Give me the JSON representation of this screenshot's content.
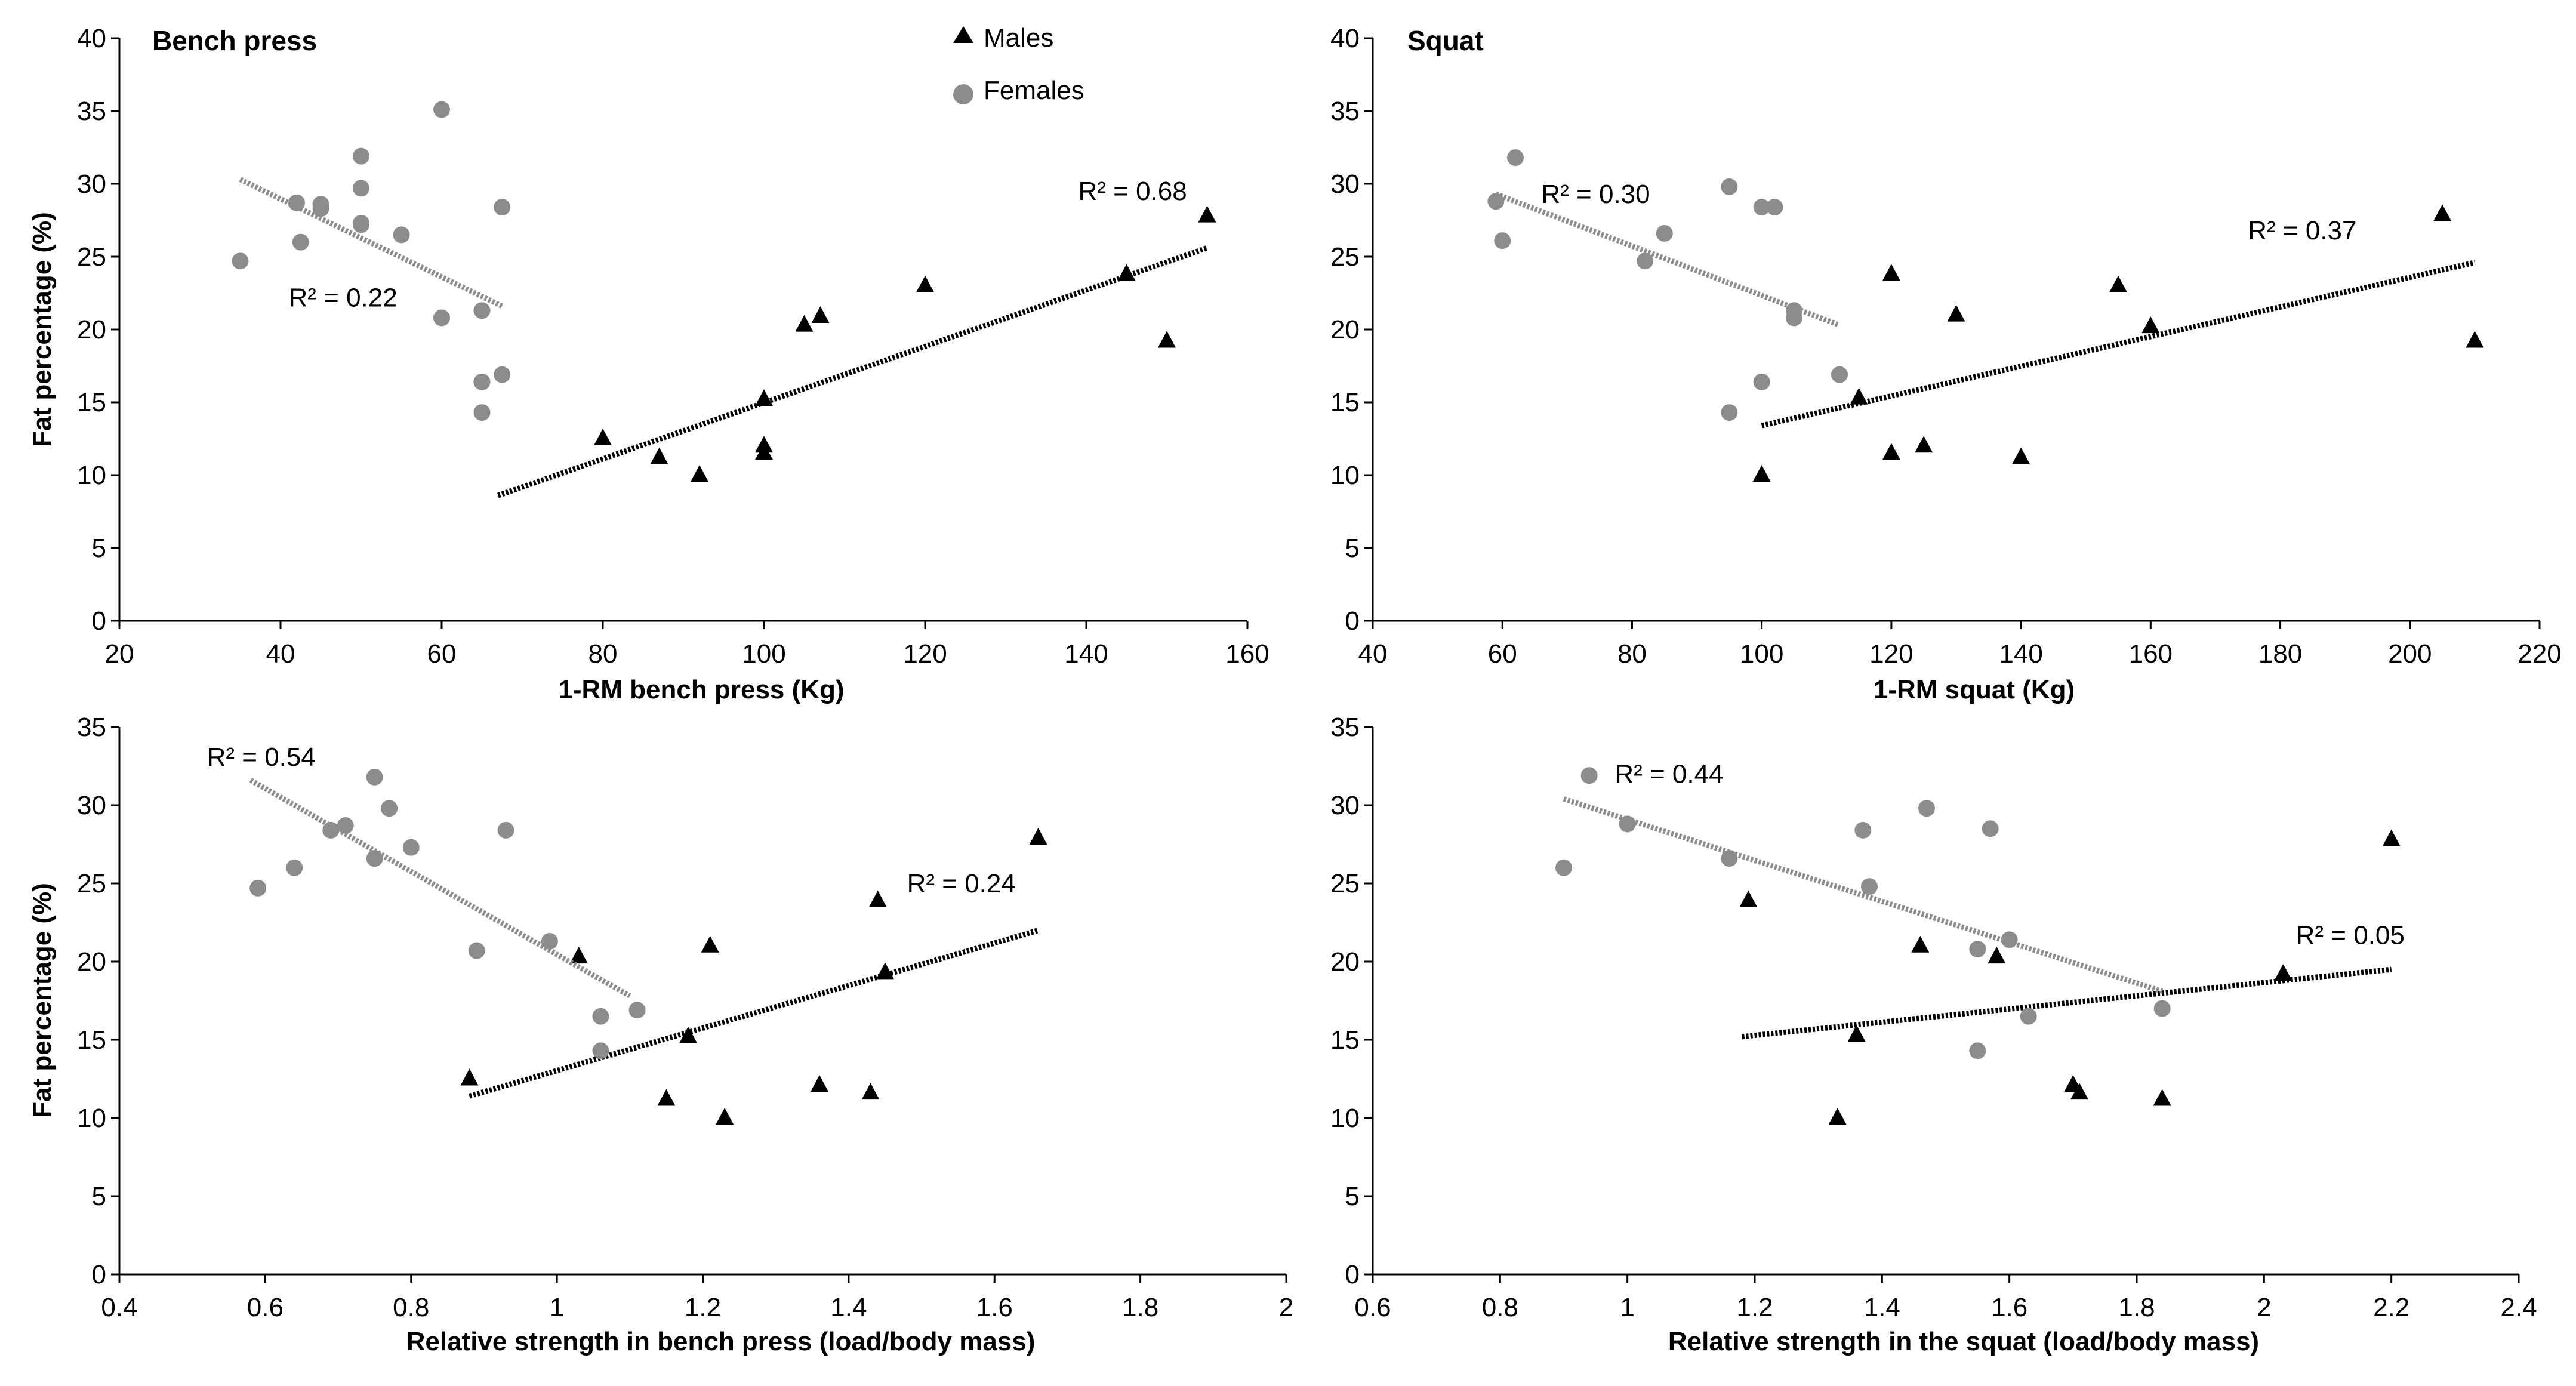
{
  "colors": {
    "males": "#000000",
    "females": "#8c8c8c",
    "axis": "#000000",
    "background": "#ffffff"
  },
  "legend": {
    "males_label": "Males",
    "females_label": "Females",
    "males_icon": "triangle-marker",
    "females_icon": "circle-marker"
  },
  "chart_data": [
    {
      "type": "scatter",
      "title": "Bench press",
      "xlabel": "1-RM bench press (Kg)",
      "ylabel": "Fat percentage (%)",
      "xlim": [
        20,
        160
      ],
      "ylim": [
        0,
        40
      ],
      "xticks": [
        20,
        40,
        60,
        80,
        100,
        120,
        140,
        160
      ],
      "yticks": [
        0,
        5,
        10,
        15,
        20,
        25,
        30,
        35,
        40
      ],
      "xtick_labels": [
        "20",
        "40",
        "60",
        "80",
        "100",
        "120",
        "140",
        "160"
      ],
      "ytick_labels": [
        "0",
        "5",
        "10",
        "15",
        "20",
        "25",
        "30",
        "35",
        "40"
      ],
      "legend_position": "top-center",
      "series": [
        {
          "name": "Males",
          "x": [
            80,
            87,
            92,
            100,
            100,
            100,
            105,
            107,
            120,
            145,
            150,
            155
          ],
          "y": [
            12.5,
            11.2,
            10,
            11.5,
            12,
            15.2,
            20.3,
            20.9,
            23,
            23.8,
            19.2,
            27.8
          ],
          "trend": {
            "x": [
              67,
              155
            ],
            "y": [
              8.6,
              25.6
            ]
          },
          "r2_label": "R² = 0.68",
          "r2_at": [
            139,
            29.5
          ]
        },
        {
          "name": "Females",
          "x": [
            35,
            42,
            42.5,
            45,
            45,
            50,
            50,
            50,
            50,
            55,
            60,
            60,
            65,
            65,
            65,
            67.5,
            67.5
          ],
          "y": [
            24.7,
            28.7,
            26,
            28.6,
            28.3,
            31.9,
            29.7,
            27.3,
            27.2,
            26.5,
            35.1,
            20.8,
            21.3,
            16.4,
            14.3,
            16.9,
            28.4
          ],
          "trend": {
            "x": [
              35,
              67.5
            ],
            "y": [
              30.3,
              21.6
            ]
          },
          "r2_label": "R² = 0.22",
          "r2_at": [
            41,
            22.2
          ]
        }
      ]
    },
    {
      "type": "scatter",
      "title": "Squat",
      "xlabel": "1-RM squat  (Kg)",
      "ylabel": "",
      "xlim": [
        40,
        220
      ],
      "ylim": [
        0,
        40
      ],
      "xticks": [
        40,
        60,
        80,
        100,
        120,
        140,
        160,
        180,
        200,
        220
      ],
      "yticks": [
        0,
        5,
        10,
        15,
        20,
        25,
        30,
        35,
        40
      ],
      "xtick_labels": [
        "40",
        "60",
        "80",
        "100",
        "120",
        "140",
        "160",
        "180",
        "200",
        "220"
      ],
      "ytick_labels": [
        "0",
        "5",
        "10",
        "15",
        "20",
        "25",
        "30",
        "35",
        "40"
      ],
      "legend_position": "none",
      "series": [
        {
          "name": "Males",
          "x": [
            100,
            115,
            120,
            120,
            125,
            130,
            140,
            155,
            160,
            205,
            210
          ],
          "y": [
            10,
            15.3,
            11.5,
            23.8,
            12,
            21,
            11.2,
            23,
            20.2,
            27.9,
            19.2
          ],
          "trend": {
            "x": [
              100,
              210
            ],
            "y": [
              13.4,
              24.6
            ]
          },
          "r2_label": "R² = 0.37",
          "r2_at": [
            175,
            26.8
          ]
        },
        {
          "name": "Females",
          "x": [
            59,
            60,
            62,
            82,
            85,
            95,
            95,
            100,
            100,
            102,
            105,
            105,
            112
          ],
          "y": [
            28.8,
            26.1,
            31.8,
            24.7,
            26.6,
            29.8,
            14.3,
            28.4,
            16.4,
            28.4,
            21.3,
            20.8,
            16.9
          ],
          "trend": {
            "x": [
              59,
              112
            ],
            "y": [
              29.3,
              20.3
            ]
          },
          "r2_label": "R² = 0.30",
          "r2_at": [
            66,
            29.3
          ]
        }
      ]
    },
    {
      "type": "scatter",
      "title": "",
      "xlabel": "Relative strength in bench press (load/body mass)",
      "ylabel": "Fat percentage (%)",
      "xlim": [
        0.4,
        2
      ],
      "ylim": [
        0,
        35
      ],
      "xticks": [
        0.4,
        0.6,
        0.8,
        1,
        1.2,
        1.4,
        1.6,
        1.8,
        2
      ],
      "yticks": [
        0,
        5,
        10,
        15,
        20,
        25,
        30,
        35
      ],
      "xtick_labels": [
        "0.4",
        "0.6",
        "0.8",
        "1",
        "1.2",
        "1.4",
        "1.6",
        "1.8",
        "2"
      ],
      "ytick_labels": [
        "0",
        "5",
        "10",
        "15",
        "20",
        "25",
        "30",
        "35"
      ],
      "legend_position": "none",
      "series": [
        {
          "name": "Males",
          "x": [
            0.88,
            1.03,
            1.15,
            1.18,
            1.21,
            1.23,
            1.36,
            1.43,
            1.44,
            1.45,
            1.66
          ],
          "y": [
            12.5,
            20.3,
            11.2,
            15.2,
            21,
            10,
            12.1,
            11.6,
            23.9,
            19.3,
            27.9
          ],
          "trend": {
            "x": [
              0.88,
              1.66
            ],
            "y": [
              11.4,
              22
            ]
          },
          "r2_label": "R² = 0.24",
          "r2_at": [
            1.48,
            25
          ]
        },
        {
          "name": "Females",
          "x": [
            0.59,
            0.64,
            0.69,
            0.71,
            0.75,
            0.75,
            0.77,
            0.8,
            0.89,
            0.93,
            0.99,
            1.06,
            1.06,
            1.11
          ],
          "y": [
            24.7,
            26,
            28.4,
            28.7,
            31.8,
            26.6,
            29.8,
            27.3,
            20.7,
            28.4,
            21.3,
            16.5,
            14.3,
            16.9
          ],
          "trend": {
            "x": [
              0.58,
              1.1
            ],
            "y": [
              31.6,
              17.8
            ]
          },
          "r2_label": "R² = 0.54",
          "r2_at": [
            0.52,
            33.1
          ]
        }
      ]
    },
    {
      "type": "scatter",
      "title": "",
      "xlabel": "Relative strength in the squat (load/body mass)",
      "ylabel": "",
      "xlim": [
        0.6,
        2.4
      ],
      "ylim": [
        0,
        35
      ],
      "xticks": [
        0.6,
        0.8,
        1,
        1.2,
        1.4,
        1.6,
        1.8,
        2,
        2.2,
        2.4
      ],
      "yticks": [
        0,
        5,
        10,
        15,
        20,
        25,
        30,
        35
      ],
      "xtick_labels": [
        "0.6",
        "0.8",
        "1",
        "1.2",
        "1.4",
        "1.6",
        "1.8",
        "2",
        "2.2",
        "2.4"
      ],
      "ytick_labels": [
        "0",
        "5",
        "10",
        "15",
        "20",
        "25",
        "30",
        "35"
      ],
      "legend_position": "none",
      "series": [
        {
          "name": "Males",
          "x": [
            1.19,
            1.33,
            1.36,
            1.46,
            1.58,
            1.7,
            1.71,
            1.84,
            2.03,
            2.2
          ],
          "y": [
            23.9,
            10,
            15.3,
            21,
            20.3,
            12.1,
            11.6,
            11.2,
            19.2,
            27.8
          ],
          "trend": {
            "x": [
              1.18,
              2.2
            ],
            "y": [
              15.2,
              19.5
            ]
          },
          "r2_label": "R² = 0.05",
          "r2_at": [
            2.05,
            21.7
          ]
        },
        {
          "name": "Females",
          "x": [
            0.9,
            0.94,
            1,
            1.16,
            1.37,
            1.38,
            1.47,
            1.55,
            1.55,
            1.57,
            1.6,
            1.63,
            1.84
          ],
          "y": [
            26,
            31.9,
            28.8,
            26.6,
            28.4,
            24.8,
            29.8,
            20.8,
            14.3,
            28.5,
            21.4,
            16.5,
            17
          ],
          "trend": {
            "x": [
              0.9,
              1.84
            ],
            "y": [
              30.4,
              18.1
            ]
          },
          "r2_label": "R² = 0.44",
          "r2_at": [
            0.98,
            32
          ]
        }
      ]
    }
  ]
}
